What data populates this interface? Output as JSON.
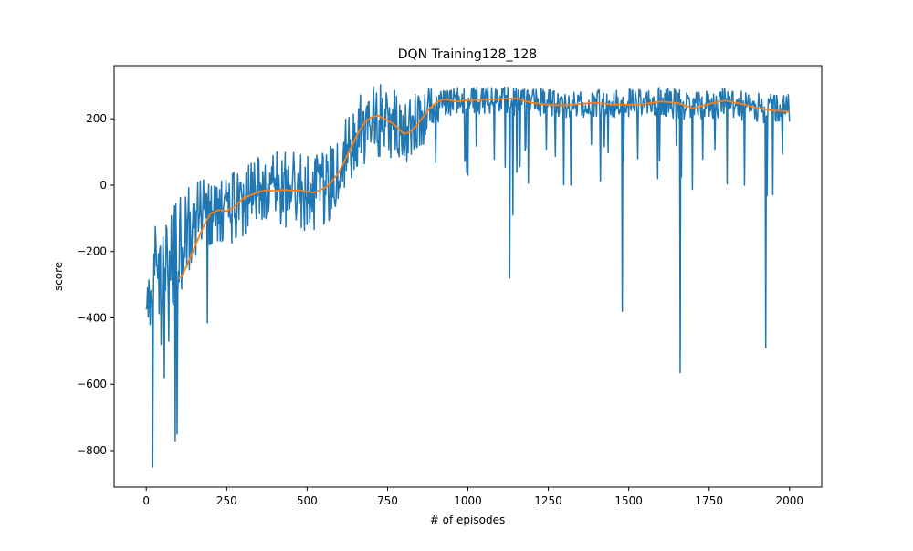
{
  "chart_data": {
    "type": "line",
    "title": "DQN Training128_128",
    "xlabel": "# of episodes",
    "ylabel": "score",
    "xlim": [
      -100,
      2100
    ],
    "ylim": [
      -910,
      360
    ],
    "x_ticks": [
      0,
      250,
      500,
      750,
      1000,
      1250,
      1500,
      1750,
      2000
    ],
    "x_tick_labels": [
      "0",
      "250",
      "500",
      "750",
      "1000",
      "1250",
      "1500",
      "1750",
      "2000"
    ],
    "y_ticks": [
      -800,
      -600,
      -400,
      -200,
      0,
      200
    ],
    "y_tick_labels": [
      "−800",
      "−600",
      "−400",
      "−200",
      "0",
      "200"
    ],
    "grid": false,
    "legend": "none",
    "episodes": 2000,
    "series": [
      {
        "color": "#1f77b4",
        "kind": "raw_score_envelope",
        "x": [
          0,
          20,
          40,
          60,
          80,
          100,
          125,
          150,
          175,
          200,
          225,
          250,
          275,
          300,
          325,
          350,
          375,
          400,
          425,
          450,
          475,
          500,
          525,
          550,
          575,
          600,
          625,
          650,
          675,
          700,
          725,
          750,
          775,
          800,
          825,
          850,
          875,
          900,
          925,
          950,
          975,
          1000,
          1025,
          1050,
          1100,
          1150,
          1200,
          1250,
          1300,
          1350,
          1400,
          1450,
          1500,
          1550,
          1600,
          1650,
          1700,
          1750,
          1800,
          1850,
          1900,
          1950,
          2000
        ],
        "center": [
          -280,
          -260,
          -250,
          -240,
          -220,
          -180,
          -150,
          -110,
          -85,
          -80,
          -80,
          -75,
          -65,
          -50,
          -40,
          -30,
          -25,
          -20,
          -18,
          -15,
          -15,
          -18,
          -20,
          -15,
          20,
          60,
          110,
          150,
          170,
          190,
          195,
          195,
          175,
          165,
          170,
          195,
          215,
          235,
          250,
          255,
          255,
          255,
          255,
          258,
          260,
          255,
          250,
          245,
          245,
          245,
          245,
          245,
          245,
          248,
          250,
          245,
          240,
          245,
          248,
          240,
          235,
          230,
          228
        ],
        "spread": [
          120,
          140,
          150,
          150,
          150,
          150,
          140,
          130,
          120,
          110,
          100,
          100,
          110,
          120,
          120,
          120,
          120,
          120,
          120,
          120,
          120,
          120,
          120,
          120,
          120,
          110,
          110,
          110,
          110,
          110,
          110,
          110,
          110,
          110,
          100,
          90,
          80,
          60,
          45,
          45,
          45,
          45,
          45,
          45,
          45,
          45,
          45,
          45,
          45,
          45,
          45,
          45,
          45,
          45,
          45,
          45,
          45,
          45,
          45,
          45,
          45,
          45,
          45
        ],
        "outliers": [
          {
            "x": 12,
            "y": -420
          },
          {
            "x": 20,
            "y": -850
          },
          {
            "x": 45,
            "y": -480
          },
          {
            "x": 55,
            "y": -580
          },
          {
            "x": 70,
            "y": -470
          },
          {
            "x": 90,
            "y": -770
          },
          {
            "x": 95,
            "y": -750
          },
          {
            "x": 190,
            "y": -415
          },
          {
            "x": 1130,
            "y": -280
          },
          {
            "x": 1480,
            "y": -380
          },
          {
            "x": 1660,
            "y": -565
          },
          {
            "x": 1925,
            "y": -490
          },
          {
            "x": 1000,
            "y": 30
          },
          {
            "x": 1140,
            "y": -90
          },
          {
            "x": 1320,
            "y": 0
          },
          {
            "x": 1590,
            "y": 20
          },
          {
            "x": 1860,
            "y": 0
          }
        ]
      },
      {
        "color": "#ff7f0e",
        "kind": "moving_average_100",
        "x": [
          100,
          110,
          125,
          140,
          160,
          180,
          200,
          225,
          250,
          275,
          300,
          325,
          350,
          375,
          400,
          425,
          450,
          475,
          500,
          520,
          540,
          560,
          580,
          600,
          620,
          640,
          660,
          680,
          700,
          720,
          740,
          760,
          780,
          800,
          820,
          840,
          860,
          880,
          900,
          920,
          940,
          960,
          1000,
          1050,
          1100,
          1150,
          1200,
          1250,
          1300,
          1350,
          1400,
          1450,
          1500,
          1550,
          1600,
          1650,
          1700,
          1750,
          1800,
          1850,
          1900,
          1950,
          2000
        ],
        "y": [
          -280,
          -275,
          -245,
          -210,
          -165,
          -120,
          -85,
          -75,
          -78,
          -65,
          -40,
          -30,
          -20,
          -15,
          -18,
          -14,
          -16,
          -15,
          -20,
          -22,
          -15,
          -5,
          15,
          40,
          80,
          120,
          160,
          190,
          205,
          210,
          200,
          190,
          175,
          155,
          160,
          180,
          205,
          230,
          248,
          258,
          258,
          252,
          256,
          258,
          260,
          262,
          248,
          242,
          240,
          245,
          248,
          243,
          242,
          245,
          252,
          248,
          232,
          245,
          255,
          245,
          232,
          225,
          222
        ]
      }
    ]
  }
}
